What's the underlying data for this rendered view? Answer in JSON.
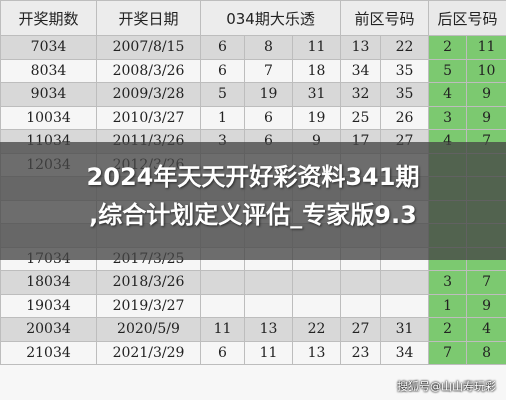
{
  "table": {
    "headers": [
      "开奖期数",
      "开奖日期",
      "034期大乐透",
      "前区号码",
      "后区号码"
    ],
    "rows": [
      {
        "issue": "7034",
        "date": "2007/8/15",
        "front": [
          "6",
          "8",
          "11",
          "13",
          "22"
        ],
        "back": [
          "2",
          "11"
        ]
      },
      {
        "issue": "8034",
        "date": "2008/3/26",
        "front": [
          "6",
          "7",
          "18",
          "34",
          "35"
        ],
        "back": [
          "5",
          "10"
        ]
      },
      {
        "issue": "9034",
        "date": "2009/3/28",
        "front": [
          "5",
          "19",
          "31",
          "32",
          "35"
        ],
        "back": [
          "4",
          "9"
        ]
      },
      {
        "issue": "10034",
        "date": "2010/3/27",
        "front": [
          "1",
          "6",
          "19",
          "25",
          "26"
        ],
        "back": [
          "3",
          "9"
        ]
      },
      {
        "issue": "11034",
        "date": "2011/3/26",
        "front": [
          "3",
          "6",
          "9",
          "17",
          "27"
        ],
        "back": [
          "4",
          "7"
        ]
      },
      {
        "issue": "12034",
        "date": "2012/3/26",
        "front": [
          "",
          "",
          "",
          "",
          ""
        ],
        "back": [
          "",
          ""
        ]
      },
      {
        "issue": "",
        "date": "",
        "front": [
          "",
          "",
          "",
          "",
          ""
        ],
        "back": [
          "",
          ""
        ]
      },
      {
        "issue": "",
        "date": "",
        "front": [
          "",
          "",
          "",
          "",
          ""
        ],
        "back": [
          "",
          ""
        ]
      },
      {
        "issue": "",
        "date": "",
        "front": [
          "",
          "",
          "",
          "",
          ""
        ],
        "back": [
          "",
          ""
        ]
      },
      {
        "issue": "17034",
        "date": "2017/3/25",
        "front": [
          "",
          "",
          "",
          "",
          ""
        ],
        "back": [
          "",
          ""
        ]
      },
      {
        "issue": "18034",
        "date": "2018/3/26",
        "front": [
          "",
          "",
          "",
          "",
          ""
        ],
        "back": [
          "3",
          "7"
        ]
      },
      {
        "issue": "19034",
        "date": "2019/3/27",
        "front": [
          "",
          "",
          "",
          "",
          ""
        ],
        "back": [
          "1",
          "9"
        ]
      },
      {
        "issue": "20034",
        "date": "2020/5/9",
        "front": [
          "11",
          "13",
          "22",
          "27",
          "31"
        ],
        "back": [
          "2",
          "4"
        ]
      },
      {
        "issue": "21034",
        "date": "2021/3/29",
        "front": [
          "6",
          "11",
          "13",
          "23",
          "34"
        ],
        "back": [
          "7",
          "8"
        ]
      }
    ]
  },
  "overlay": {
    "line1": "2024年天天开好彩资料341期",
    "line2": ",综合计划定义评估_专家版9.3"
  },
  "watermark": "搜狐号@山山寿玩彩",
  "colors": {
    "back_cell": "#7cc970",
    "shade_row": "#d8d8d8",
    "plain_row": "#f6f6f6"
  }
}
